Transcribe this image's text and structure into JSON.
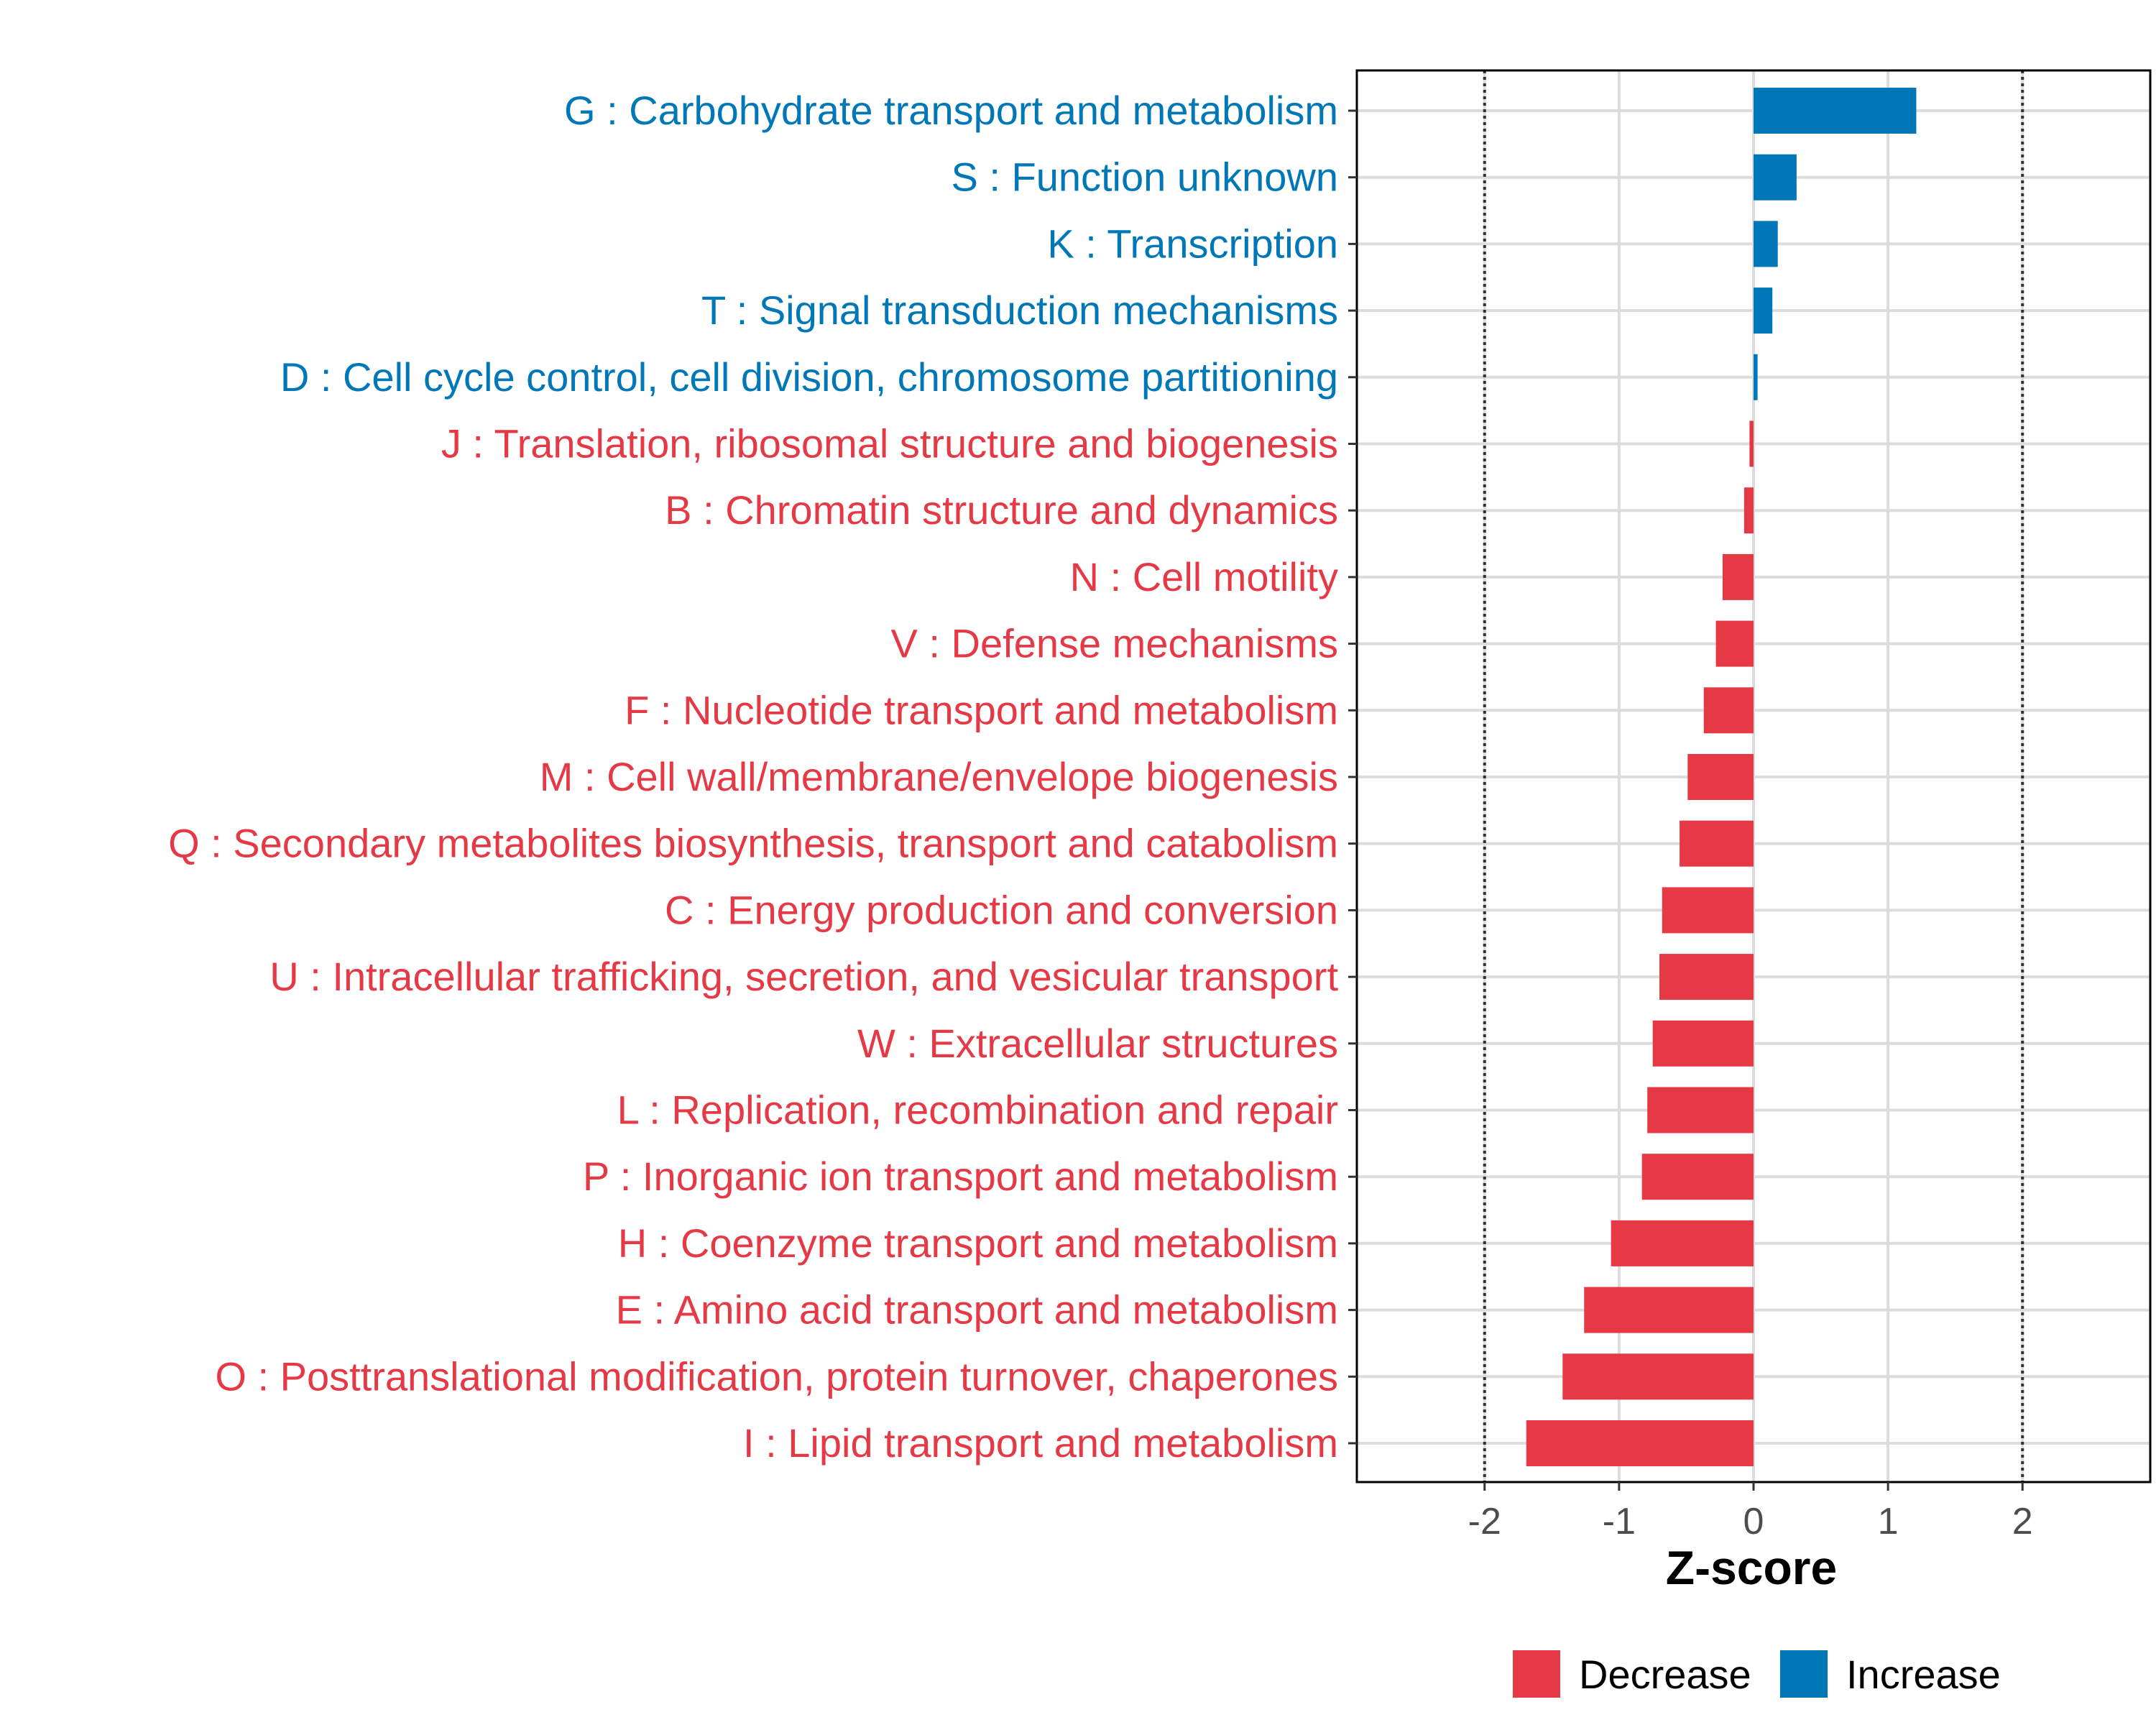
{
  "chart_data": {
    "type": "bar",
    "orientation": "horizontal",
    "xlabel": "Z-score",
    "xlim": [
      -2.95,
      2.95
    ],
    "xticks": [
      -2,
      -1,
      0,
      1,
      2
    ],
    "xtick_labels": [
      "-2",
      "-1",
      "0",
      "1",
      "2"
    ],
    "reference_lines": [
      -2,
      2
    ],
    "grid": true,
    "categories": [
      "G : Carbohydrate transport and metabolism",
      "S : Function unknown",
      "K : Transcription",
      "T : Signal transduction mechanisms",
      "D : Cell cycle control, cell division, chromosome partitioning",
      "J : Translation, ribosomal structure and biogenesis",
      "B : Chromatin structure and dynamics",
      "N : Cell motility",
      "V : Defense mechanisms",
      "F : Nucleotide transport and metabolism",
      "M : Cell wall/membrane/envelope biogenesis",
      "Q : Secondary metabolites biosynthesis, transport and catabolism",
      "C : Energy production and conversion",
      "U : Intracellular trafficking, secretion, and vesicular transport",
      "W : Extracellular structures",
      "L : Replication, recombination and repair",
      "P : Inorganic ion transport and metabolism",
      "H : Coenzyme transport and metabolism",
      "E : Amino acid transport and metabolism",
      "O : Posttranslational modification, protein turnover, chaperones",
      "I : Lipid transport and metabolism"
    ],
    "values": [
      1.21,
      0.32,
      0.18,
      0.14,
      0.03,
      -0.03,
      -0.07,
      -0.23,
      -0.28,
      -0.37,
      -0.49,
      -0.55,
      -0.68,
      -0.7,
      -0.75,
      -0.79,
      -0.83,
      -1.06,
      -1.26,
      -1.42,
      -1.69
    ],
    "groups": [
      "Increase",
      "Increase",
      "Increase",
      "Increase",
      "Increase",
      "Decrease",
      "Decrease",
      "Decrease",
      "Decrease",
      "Decrease",
      "Decrease",
      "Decrease",
      "Decrease",
      "Decrease",
      "Decrease",
      "Decrease",
      "Decrease",
      "Decrease",
      "Decrease",
      "Decrease",
      "Decrease"
    ],
    "legend": {
      "placement": "bottom",
      "entries": [
        {
          "label": "Decrease",
          "color": "#e63946"
        },
        {
          "label": "Increase",
          "color": "#0077b6"
        }
      ]
    },
    "colors": {
      "Decrease": "#e63946",
      "Increase": "#0077b6"
    }
  }
}
